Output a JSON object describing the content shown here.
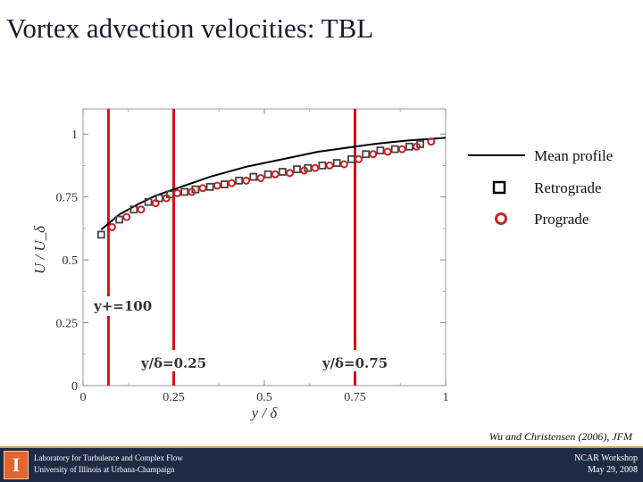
{
  "title": "Vortex advection velocities: TBL",
  "citation": "Wu and Christensen (2006), JFM",
  "footer": {
    "lab_line1": "Laboratory for Turbulence and Complex Flow",
    "lab_line2": "University of Illinois at Urbana-Champaign",
    "event_line1": "NCAR Workshop",
    "event_line2": "May 29, 2008",
    "logo_glyph": "I"
  },
  "colors": {
    "prograde": "#cc2222",
    "retrograde": "#444444",
    "guides": "#dd1111",
    "footer": "#1f2a44"
  },
  "chart_data": {
    "type": "scatter",
    "xlabel": "y / δ",
    "ylabel": "U / U_δ",
    "xlim": [
      0,
      1
    ],
    "ylim": [
      0,
      1.1
    ],
    "x_ticks": [
      "0",
      "0.25",
      "0.5",
      "0.75",
      "1"
    ],
    "y_ticks": [
      "0",
      "0.25",
      "0.5",
      "0.75",
      "1"
    ],
    "legend_position": "right",
    "series": [
      {
        "name": "Mean profile",
        "kind": "line",
        "x": [
          0.05,
          0.1,
          0.15,
          0.2,
          0.25,
          0.3,
          0.35,
          0.4,
          0.45,
          0.5,
          0.55,
          0.6,
          0.65,
          0.7,
          0.75,
          0.8,
          0.85,
          0.9,
          0.95,
          1.0
        ],
        "y": [
          0.62,
          0.68,
          0.72,
          0.755,
          0.78,
          0.805,
          0.83,
          0.85,
          0.87,
          0.885,
          0.9,
          0.915,
          0.93,
          0.94,
          0.95,
          0.96,
          0.968,
          0.975,
          0.98,
          0.985
        ]
      },
      {
        "name": "Retrograde",
        "kind": "square",
        "x": [
          0.05,
          0.1,
          0.14,
          0.18,
          0.21,
          0.24,
          0.28,
          0.31,
          0.35,
          0.39,
          0.43,
          0.47,
          0.51,
          0.55,
          0.59,
          0.62,
          0.66,
          0.7,
          0.74,
          0.78,
          0.82,
          0.86,
          0.9,
          0.93
        ],
        "y": [
          0.6,
          0.66,
          0.7,
          0.73,
          0.745,
          0.76,
          0.77,
          0.78,
          0.79,
          0.8,
          0.815,
          0.83,
          0.84,
          0.85,
          0.86,
          0.865,
          0.875,
          0.885,
          0.9,
          0.92,
          0.935,
          0.94,
          0.95,
          0.96
        ]
      },
      {
        "name": "Prograde",
        "kind": "circle",
        "x": [
          0.08,
          0.12,
          0.16,
          0.2,
          0.23,
          0.26,
          0.3,
          0.33,
          0.37,
          0.41,
          0.45,
          0.49,
          0.53,
          0.57,
          0.61,
          0.64,
          0.68,
          0.72,
          0.76,
          0.8,
          0.84,
          0.88,
          0.92,
          0.96
        ],
        "y": [
          0.63,
          0.67,
          0.7,
          0.725,
          0.745,
          0.765,
          0.77,
          0.785,
          0.795,
          0.805,
          0.815,
          0.825,
          0.84,
          0.845,
          0.855,
          0.865,
          0.875,
          0.88,
          0.9,
          0.92,
          0.93,
          0.94,
          0.95,
          0.97
        ]
      }
    ],
    "guides": [
      {
        "x": 0.07,
        "label": "y+=100"
      },
      {
        "x": 0.25,
        "label": "y/δ=0.25"
      },
      {
        "x": 0.75,
        "label": "y/δ=0.75"
      }
    ]
  }
}
